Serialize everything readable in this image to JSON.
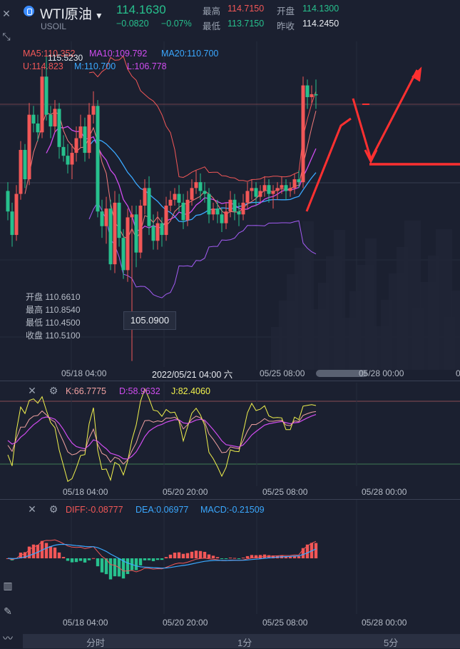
{
  "header": {
    "title": "WTI原油",
    "symbol": "USOIL",
    "price": "114.1630",
    "change": "−0.0820",
    "change_pct": "−0.07%",
    "high_label": "最高",
    "high": "114.7150",
    "open_label": "开盘",
    "open": "114.1300",
    "low_label": "最低",
    "low": "113.7150",
    "prev_label": "昨收",
    "prev": "114.2450"
  },
  "main": {
    "ma5": "MA5:110.352",
    "ma10": "MA10:109.792",
    "ma20": "MA20:110.700",
    "boll_u": "U:114.823",
    "boll_m": "M:110.700",
    "boll_l": "L:106.778",
    "max_label": "115.5230",
    "min_label": "105.0900",
    "ohlc": {
      "open": "开盘 110.6610",
      "high": "最高 110.8540",
      "low": "最低 110.4500",
      "close": "收盘 110.5100"
    },
    "x_labels": [
      "05/18 04:00",
      "05/25 08:00",
      "05/28 00:00",
      "0"
    ],
    "cursor_date": "2022/05/21 04:00 六"
  },
  "kdj": {
    "k": "K:66.7775",
    "d": "D:58.9632",
    "j": "J:82.4060",
    "x_labels": [
      "05/18 04:00",
      "05/20 20:00",
      "05/25 08:00",
      "05/28 00:00"
    ]
  },
  "macd": {
    "diff": "DIFF:-0.08777",
    "dea": "DEA:0.06977",
    "macd": "MACD:-0.21509",
    "x_labels": [
      "05/18 04:00",
      "05/20 20:00",
      "05/25 08:00",
      "05/28 00:00"
    ]
  },
  "tabs": [
    "分时",
    "1分",
    "5分"
  ],
  "colors": {
    "up": "#f25757",
    "down": "#27c08d",
    "ma5": "#f25757",
    "ma10": "#d04cf0",
    "ma20": "#3aa8ff",
    "k": "#f2a2a2",
    "d": "#d04cf0",
    "j": "#f2f24d"
  },
  "chart_data": {
    "type": "candlestick",
    "candles": [
      [
        110.9,
        110.2,
        111.2,
        109.9
      ],
      [
        110.2,
        109.4,
        110.5,
        109.0
      ],
      [
        109.4,
        110.8,
        111.1,
        109.2
      ],
      [
        110.8,
        112.3,
        112.6,
        110.6
      ],
      [
        112.3,
        111.3,
        112.5,
        111.0
      ],
      [
        111.3,
        113.5,
        113.9,
        111.1
      ],
      [
        113.5,
        113.2,
        113.8,
        112.9
      ],
      [
        113.2,
        112.9,
        113.5,
        112.6
      ],
      [
        112.9,
        114.8,
        115.1,
        112.7
      ],
      [
        114.8,
        113.5,
        115.5,
        113.3
      ],
      [
        113.5,
        113.1,
        113.8,
        112.7
      ],
      [
        113.1,
        113.7,
        114.0,
        112.9
      ],
      [
        113.7,
        112.4,
        113.9,
        112.0
      ],
      [
        112.4,
        112.1,
        112.8,
        111.9
      ],
      [
        112.1,
        111.8,
        112.5,
        111.5
      ],
      [
        111.8,
        112.2,
        112.5,
        111.3
      ],
      [
        112.2,
        112.7,
        113.1,
        111.9
      ],
      [
        112.7,
        113.1,
        113.5,
        112.4
      ],
      [
        113.1,
        112.2,
        113.4,
        111.9
      ],
      [
        112.2,
        113.5,
        113.9,
        112.0
      ],
      [
        113.5,
        113.8,
        114.3,
        113.2
      ],
      [
        113.8,
        110.2,
        114.0,
        110.0
      ],
      [
        110.2,
        109.7,
        110.6,
        109.3
      ],
      [
        109.7,
        110.3,
        110.7,
        109.1
      ],
      [
        110.3,
        108.4,
        110.6,
        108.2
      ],
      [
        108.4,
        110.5,
        110.9,
        108.1
      ],
      [
        110.5,
        109.3,
        110.8,
        109.0
      ],
      [
        109.3,
        108.2,
        109.6,
        107.9
      ],
      [
        108.2,
        110.0,
        110.3,
        107.8
      ],
      [
        110.0,
        110.1,
        110.4,
        105.1
      ],
      [
        110.1,
        108.8,
        110.4,
        108.3
      ],
      [
        108.8,
        110.4,
        110.6,
        108.6
      ],
      [
        110.4,
        111.0,
        111.3,
        110.1
      ],
      [
        111.0,
        109.7,
        111.4,
        109.4
      ],
      [
        109.7,
        109.2,
        110.1,
        108.9
      ],
      [
        109.2,
        109.8,
        110.2,
        108.9
      ],
      [
        109.8,
        109.4,
        110.0,
        109.0
      ],
      [
        109.4,
        110.4,
        110.7,
        109.2
      ],
      [
        110.4,
        110.6,
        110.9,
        110.2
      ],
      [
        110.6,
        110.8,
        111.0,
        110.4
      ],
      [
        110.8,
        110.5,
        111.1,
        110.2
      ],
      [
        110.5,
        109.9,
        110.8,
        109.6
      ],
      [
        109.9,
        110.6,
        110.9,
        109.7
      ],
      [
        110.6,
        111.0,
        111.3,
        110.4
      ],
      [
        111.0,
        111.2,
        111.6,
        110.8
      ],
      [
        111.2,
        110.9,
        111.5,
        110.6
      ],
      [
        110.9,
        110.8,
        111.2,
        110.5
      ],
      [
        110.8,
        110.1,
        111.0,
        109.8
      ],
      [
        110.1,
        110.3,
        110.5,
        109.9
      ],
      [
        110.3,
        110.1,
        110.6,
        109.8
      ],
      [
        110.1,
        109.8,
        110.3,
        109.5
      ],
      [
        109.8,
        110.2,
        110.5,
        109.6
      ],
      [
        110.2,
        110.6,
        110.9,
        110.0
      ],
      [
        110.6,
        110.2,
        110.8,
        109.9
      ],
      [
        110.2,
        110.1,
        110.5,
        109.7
      ],
      [
        110.1,
        110.5,
        110.8,
        109.9
      ],
      [
        110.5,
        110.9,
        111.2,
        110.3
      ],
      [
        110.9,
        111.0,
        111.3,
        110.6
      ],
      [
        111.0,
        110.7,
        111.2,
        110.4
      ],
      [
        110.7,
        110.9,
        111.1,
        110.5
      ],
      [
        110.9,
        111.1,
        111.4,
        110.7
      ],
      [
        111.1,
        110.8,
        111.3,
        110.5
      ],
      [
        110.8,
        110.9,
        111.1,
        110.3
      ],
      [
        110.9,
        111.0,
        111.2,
        110.6
      ],
      [
        111.0,
        111.1,
        111.4,
        110.8
      ],
      [
        111.1,
        110.9,
        111.3,
        110.6
      ],
      [
        110.9,
        111.0,
        111.2,
        110.7
      ],
      [
        111.0,
        111.3,
        111.5,
        110.8
      ],
      [
        111.3,
        111.2,
        111.6,
        111.0
      ],
      [
        111.2,
        114.5,
        114.8,
        111.0
      ],
      [
        114.5,
        114.1,
        114.7,
        113.7
      ],
      [
        114.1,
        114.2,
        114.5,
        113.9
      ],
      [
        114.2,
        114.16,
        114.7,
        113.7
      ]
    ],
    "y_range": [
      104.8,
      116.0
    ]
  }
}
